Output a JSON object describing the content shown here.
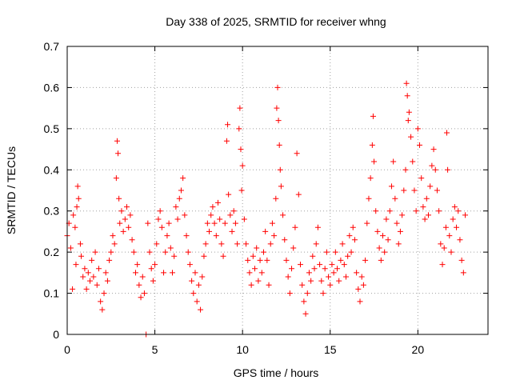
{
  "chart_data": {
    "type": "scatter",
    "title": "Day 338 of 2025, SRMTID for receiver whng",
    "xlabel": "GPS time / hours",
    "ylabel": "SRMTID / TECUs",
    "xlim": [
      0,
      24
    ],
    "ylim": [
      0,
      0.7
    ],
    "xticks": [
      0,
      5,
      10,
      15,
      20
    ],
    "yticks": [
      0,
      0.1,
      0.2,
      0.3,
      0.4,
      0.5,
      0.6,
      0.7
    ],
    "xtick_labels": [
      "0",
      "5",
      "10",
      "15",
      "20"
    ],
    "ytick_labels": [
      "0",
      "0.1",
      "0.2",
      "0.3",
      "0.4",
      "0.5",
      "0.6",
      "0.7"
    ],
    "grid": true,
    "marker": "+",
    "color": "#ff0000",
    "series": [
      {
        "name": "SRMTID",
        "points": [
          [
            0.0,
            0.24
          ],
          [
            0.1,
            0.27
          ],
          [
            0.2,
            0.21
          ],
          [
            0.3,
            0.11
          ],
          [
            0.35,
            0.29
          ],
          [
            0.45,
            0.26
          ],
          [
            0.5,
            0.17
          ],
          [
            0.55,
            0.31
          ],
          [
            0.6,
            0.36
          ],
          [
            0.65,
            0.33
          ],
          [
            0.75,
            0.22
          ],
          [
            0.8,
            0.19
          ],
          [
            0.9,
            0.14
          ],
          [
            1.0,
            0.16
          ],
          [
            1.1,
            0.11
          ],
          [
            1.2,
            0.15
          ],
          [
            1.3,
            0.13
          ],
          [
            1.4,
            0.18
          ],
          [
            1.5,
            0.14
          ],
          [
            1.6,
            0.2
          ],
          [
            1.7,
            0.12
          ],
          [
            1.8,
            0.16
          ],
          [
            1.9,
            0.08
          ],
          [
            2.0,
            0.06
          ],
          [
            2.1,
            0.1
          ],
          [
            2.2,
            0.15
          ],
          [
            2.3,
            0.13
          ],
          [
            2.4,
            0.18
          ],
          [
            2.5,
            0.2
          ],
          [
            2.6,
            0.24
          ],
          [
            2.7,
            0.22
          ],
          [
            2.8,
            0.38
          ],
          [
            2.85,
            0.47
          ],
          [
            2.9,
            0.44
          ],
          [
            2.95,
            0.33
          ],
          [
            3.0,
            0.27
          ],
          [
            3.1,
            0.3
          ],
          [
            3.2,
            0.25
          ],
          [
            3.3,
            0.28
          ],
          [
            3.4,
            0.31
          ],
          [
            3.5,
            0.26
          ],
          [
            3.6,
            0.29
          ],
          [
            3.7,
            0.23
          ],
          [
            3.8,
            0.2
          ],
          [
            3.9,
            0.15
          ],
          [
            4.0,
            0.17
          ],
          [
            4.1,
            0.12
          ],
          [
            4.2,
            0.09
          ],
          [
            4.3,
            0.14
          ],
          [
            4.4,
            0.1
          ],
          [
            4.5,
            0.0
          ],
          [
            4.6,
            0.27
          ],
          [
            4.7,
            0.2
          ],
          [
            4.8,
            0.16
          ],
          [
            4.9,
            0.13
          ],
          [
            5.0,
            0.17
          ],
          [
            5.1,
            0.22
          ],
          [
            5.2,
            0.28
          ],
          [
            5.3,
            0.3
          ],
          [
            5.4,
            0.26
          ],
          [
            5.5,
            0.15
          ],
          [
            5.6,
            0.2
          ],
          [
            5.7,
            0.24
          ],
          [
            5.8,
            0.27
          ],
          [
            5.9,
            0.21
          ],
          [
            6.0,
            0.15
          ],
          [
            6.1,
            0.19
          ],
          [
            6.2,
            0.31
          ],
          [
            6.3,
            0.28
          ],
          [
            6.4,
            0.33
          ],
          [
            6.5,
            0.35
          ],
          [
            6.6,
            0.38
          ],
          [
            6.7,
            0.29
          ],
          [
            6.8,
            0.24
          ],
          [
            6.9,
            0.2
          ],
          [
            7.0,
            0.17
          ],
          [
            7.1,
            0.13
          ],
          [
            7.2,
            0.1
          ],
          [
            7.3,
            0.15
          ],
          [
            7.4,
            0.08
          ],
          [
            7.5,
            0.12
          ],
          [
            7.6,
            0.06
          ],
          [
            7.7,
            0.14
          ],
          [
            7.8,
            0.19
          ],
          [
            7.9,
            0.22
          ],
          [
            8.0,
            0.27
          ],
          [
            8.1,
            0.25
          ],
          [
            8.2,
            0.29
          ],
          [
            8.3,
            0.31
          ],
          [
            8.4,
            0.27
          ],
          [
            8.5,
            0.24
          ],
          [
            8.6,
            0.32
          ],
          [
            8.7,
            0.28
          ],
          [
            8.8,
            0.22
          ],
          [
            8.9,
            0.19
          ],
          [
            9.0,
            0.27
          ],
          [
            9.1,
            0.47
          ],
          [
            9.15,
            0.51
          ],
          [
            9.2,
            0.34
          ],
          [
            9.3,
            0.29
          ],
          [
            9.4,
            0.25
          ],
          [
            9.5,
            0.3
          ],
          [
            9.6,
            0.27
          ],
          [
            9.7,
            0.22
          ],
          [
            9.8,
            0.5
          ],
          [
            9.85,
            0.55
          ],
          [
            9.9,
            0.45
          ],
          [
            9.95,
            0.35
          ],
          [
            10.0,
            0.41
          ],
          [
            10.1,
            0.28
          ],
          [
            10.2,
            0.22
          ],
          [
            10.3,
            0.18
          ],
          [
            10.4,
            0.15
          ],
          [
            10.5,
            0.12
          ],
          [
            10.6,
            0.19
          ],
          [
            10.7,
            0.16
          ],
          [
            10.8,
            0.21
          ],
          [
            10.9,
            0.13
          ],
          [
            11.0,
            0.18
          ],
          [
            11.1,
            0.15
          ],
          [
            11.2,
            0.2
          ],
          [
            11.3,
            0.25
          ],
          [
            11.4,
            0.18
          ],
          [
            11.5,
            0.12
          ],
          [
            11.6,
            0.22
          ],
          [
            11.7,
            0.27
          ],
          [
            11.8,
            0.24
          ],
          [
            11.9,
            0.33
          ],
          [
            11.95,
            0.55
          ],
          [
            12.0,
            0.6
          ],
          [
            12.05,
            0.52
          ],
          [
            12.1,
            0.46
          ],
          [
            12.15,
            0.4
          ],
          [
            12.2,
            0.36
          ],
          [
            12.3,
            0.29
          ],
          [
            12.4,
            0.23
          ],
          [
            12.5,
            0.18
          ],
          [
            12.6,
            0.14
          ],
          [
            12.7,
            0.1
          ],
          [
            12.8,
            0.16
          ],
          [
            12.9,
            0.21
          ],
          [
            13.0,
            0.26
          ],
          [
            13.1,
            0.44
          ],
          [
            13.2,
            0.34
          ],
          [
            13.3,
            0.17
          ],
          [
            13.4,
            0.12
          ],
          [
            13.5,
            0.08
          ],
          [
            13.6,
            0.05
          ],
          [
            13.7,
            0.1
          ],
          [
            13.8,
            0.15
          ],
          [
            13.9,
            0.13
          ],
          [
            14.0,
            0.19
          ],
          [
            14.1,
            0.16
          ],
          [
            14.2,
            0.22
          ],
          [
            14.3,
            0.26
          ],
          [
            14.4,
            0.17
          ],
          [
            14.5,
            0.13
          ],
          [
            14.6,
            0.1
          ],
          [
            14.7,
            0.16
          ],
          [
            14.8,
            0.2
          ],
          [
            14.9,
            0.14
          ],
          [
            15.0,
            0.12
          ],
          [
            15.1,
            0.17
          ],
          [
            15.2,
            0.15
          ],
          [
            15.3,
            0.2
          ],
          [
            15.4,
            0.16
          ],
          [
            15.5,
            0.13
          ],
          [
            15.6,
            0.18
          ],
          [
            15.7,
            0.22
          ],
          [
            15.8,
            0.17
          ],
          [
            15.9,
            0.14
          ],
          [
            16.0,
            0.19
          ],
          [
            16.1,
            0.24
          ],
          [
            16.2,
            0.2
          ],
          [
            16.3,
            0.26
          ],
          [
            16.4,
            0.23
          ],
          [
            16.5,
            0.15
          ],
          [
            16.6,
            0.11
          ],
          [
            16.7,
            0.08
          ],
          [
            16.8,
            0.14
          ],
          [
            16.9,
            0.12
          ],
          [
            17.0,
            0.18
          ],
          [
            17.1,
            0.27
          ],
          [
            17.2,
            0.33
          ],
          [
            17.3,
            0.38
          ],
          [
            17.4,
            0.46
          ],
          [
            17.45,
            0.53
          ],
          [
            17.5,
            0.42
          ],
          [
            17.6,
            0.3
          ],
          [
            17.7,
            0.25
          ],
          [
            17.8,
            0.21
          ],
          [
            17.9,
            0.18
          ],
          [
            18.0,
            0.24
          ],
          [
            18.1,
            0.2
          ],
          [
            18.2,
            0.28
          ],
          [
            18.3,
            0.23
          ],
          [
            18.4,
            0.3
          ],
          [
            18.5,
            0.36
          ],
          [
            18.6,
            0.42
          ],
          [
            18.7,
            0.33
          ],
          [
            18.8,
            0.27
          ],
          [
            18.9,
            0.22
          ],
          [
            19.0,
            0.25
          ],
          [
            19.1,
            0.29
          ],
          [
            19.2,
            0.35
          ],
          [
            19.3,
            0.4
          ],
          [
            19.35,
            0.61
          ],
          [
            19.4,
            0.58
          ],
          [
            19.45,
            0.52
          ],
          [
            19.5,
            0.54
          ],
          [
            19.6,
            0.48
          ],
          [
            19.7,
            0.42
          ],
          [
            19.8,
            0.35
          ],
          [
            19.9,
            0.3
          ],
          [
            20.0,
            0.5
          ],
          [
            20.1,
            0.46
          ],
          [
            20.2,
            0.38
          ],
          [
            20.3,
            0.31
          ],
          [
            20.4,
            0.28
          ],
          [
            20.5,
            0.33
          ],
          [
            20.6,
            0.29
          ],
          [
            20.7,
            0.36
          ],
          [
            20.8,
            0.41
          ],
          [
            20.9,
            0.45
          ],
          [
            21.0,
            0.4
          ],
          [
            21.1,
            0.35
          ],
          [
            21.2,
            0.3
          ],
          [
            21.3,
            0.22
          ],
          [
            21.4,
            0.17
          ],
          [
            21.5,
            0.21
          ],
          [
            21.6,
            0.26
          ],
          [
            21.65,
            0.49
          ],
          [
            21.7,
            0.4
          ],
          [
            21.8,
            0.24
          ],
          [
            21.9,
            0.2
          ],
          [
            22.0,
            0.28
          ],
          [
            22.1,
            0.31
          ],
          [
            22.2,
            0.26
          ],
          [
            22.3,
            0.3
          ],
          [
            22.4,
            0.23
          ],
          [
            22.5,
            0.18
          ],
          [
            22.6,
            0.15
          ],
          [
            22.7,
            0.29
          ]
        ]
      }
    ]
  }
}
